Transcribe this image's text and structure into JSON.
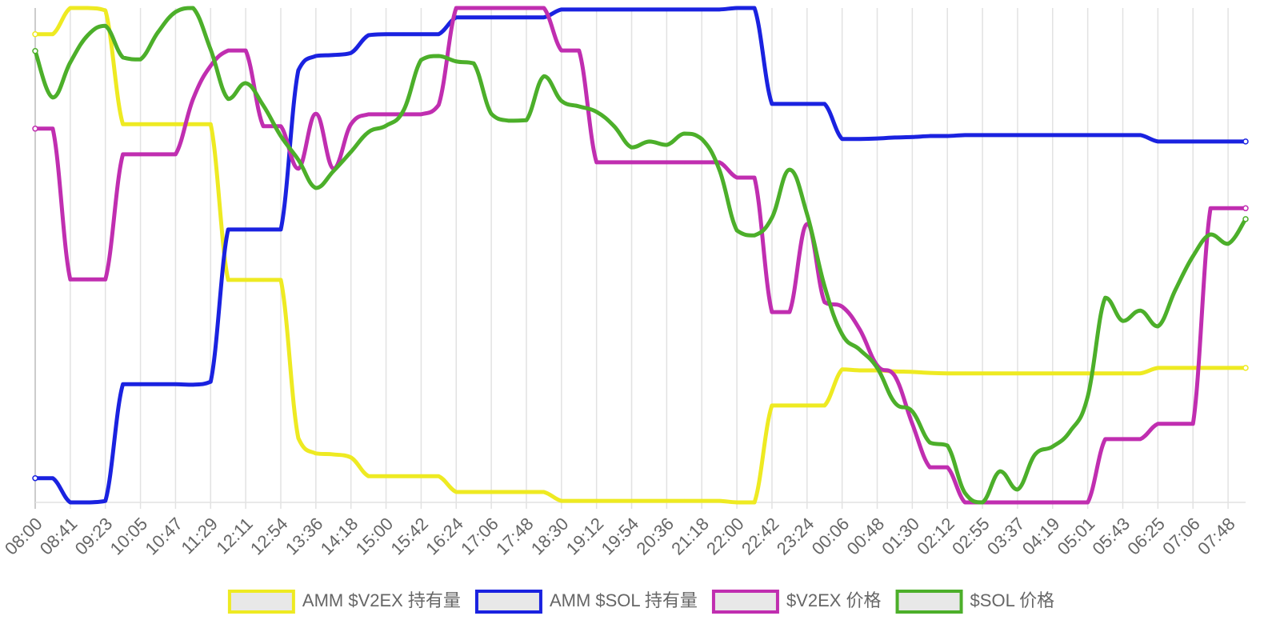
{
  "chart_data": {
    "type": "line",
    "categories": [
      "08:00",
      null,
      "08:41",
      null,
      "09:23",
      null,
      "10:05",
      null,
      "10:47",
      null,
      "11:29",
      null,
      "12:11",
      null,
      "12:54",
      null,
      "13:36",
      null,
      "14:18",
      null,
      "15:00",
      null,
      "15:42",
      null,
      "16:24",
      null,
      "17:06",
      null,
      "17:48",
      null,
      "18:30",
      null,
      "19:12",
      null,
      "19:54",
      null,
      "20:36",
      null,
      "21:18",
      null,
      "22:00",
      null,
      "22:42",
      null,
      "23:24",
      null,
      "00:06",
      null,
      "00:48",
      null,
      "01:30",
      null,
      "02:12",
      null,
      "02:55",
      null,
      "03:37",
      null,
      "04:19",
      null,
      "05:01",
      null,
      "05:43",
      null,
      "06:25",
      null,
      "07:06",
      null,
      "07:48",
      null
    ],
    "ylim": [
      0,
      100
    ],
    "legend": "bottom",
    "series": [
      {
        "name": "AMM $V2EX 持有量",
        "color": "#eeea22",
        "values": [
          94.7,
          94.7,
          100,
          100,
          99.5,
          76.5,
          76.5,
          76.5,
          76.5,
          76.5,
          76.5,
          45.0,
          45.0,
          45.0,
          45.0,
          13.0,
          9.9,
          9.7,
          9.1,
          5.3,
          5.3,
          5.3,
          5.3,
          5.3,
          2.1,
          2.1,
          2.1,
          2.1,
          2.1,
          2.1,
          0.3,
          0.3,
          0.3,
          0.3,
          0.3,
          0.3,
          0.3,
          0.3,
          0.3,
          0.3,
          0,
          0,
          19.6,
          19.6,
          19.6,
          19.6,
          26.9,
          26.7,
          26.7,
          26.5,
          26.4,
          26.2,
          26.1,
          26.1,
          26.1,
          26.1,
          26.1,
          26.1,
          26.1,
          26.1,
          26.1,
          26.1,
          26.1,
          26.1,
          27.2,
          27.2,
          27.2,
          27.2,
          27.2,
          27.2
        ]
      },
      {
        "name": "AMM $SOL 持有量",
        "color": "#1a22e0",
        "values": [
          4.9,
          4.9,
          0,
          0,
          0.3,
          23.9,
          23.9,
          23.9,
          23.9,
          23.8,
          24.4,
          55.2,
          55.2,
          55.2,
          55.2,
          87.4,
          90.3,
          90.5,
          90.9,
          94.5,
          94.7,
          94.7,
          94.7,
          94.7,
          98.1,
          98.1,
          98.1,
          98.1,
          98.1,
          98.1,
          99.7,
          99.7,
          99.7,
          99.7,
          99.7,
          99.7,
          99.7,
          99.7,
          99.7,
          99.7,
          100,
          100,
          80.6,
          80.6,
          80.6,
          80.6,
          73.5,
          73.5,
          73.6,
          73.8,
          73.9,
          74.1,
          74.1,
          74.3,
          74.3,
          74.3,
          74.3,
          74.3,
          74.3,
          74.3,
          74.3,
          74.3,
          74.3,
          74.3,
          73.0,
          73.0,
          73.0,
          73.0,
          73.0,
          73.0
        ]
      },
      {
        "name": "$V2EX 价格",
        "color": "#c02eb0",
        "values": [
          75.6,
          75.6,
          45.1,
          45.1,
          45.1,
          70.4,
          70.4,
          70.4,
          70.4,
          81.6,
          88.3,
          91.4,
          91.4,
          76.1,
          76.1,
          67.5,
          78.6,
          67.5,
          76.5,
          78.5,
          78.5,
          78.5,
          78.5,
          80.4,
          100,
          100,
          100,
          100,
          100,
          100,
          91.4,
          91.4,
          68.8,
          68.8,
          68.8,
          68.8,
          68.8,
          68.8,
          68.8,
          68.8,
          65.7,
          65.7,
          38.5,
          38.5,
          56.3,
          40.5,
          39.6,
          35.0,
          27.7,
          25.6,
          15.9,
          7.1,
          7.1,
          0,
          0,
          0,
          0,
          0,
          0,
          0,
          0,
          12.8,
          12.8,
          12.8,
          15.9,
          15.9,
          15.9,
          59.5,
          59.5,
          59.5
        ]
      },
      {
        "name": "$SOL 价格",
        "color": "#4caf2a",
        "values": [
          91.3,
          81.9,
          89.0,
          94.5,
          96.4,
          90.0,
          89.6,
          95.1,
          99.2,
          100,
          91.6,
          81.6,
          84.8,
          80.3,
          74.1,
          69.3,
          63.6,
          67.0,
          70.9,
          74.9,
          76.2,
          79.3,
          89.5,
          90.3,
          89.2,
          88.8,
          78.6,
          77.2,
          77.3,
          86.2,
          81.2,
          80.1,
          79.0,
          76.1,
          71.8,
          73.0,
          72.3,
          74.6,
          73.5,
          67.3,
          55.0,
          54.0,
          57.6,
          67.3,
          58.3,
          43.7,
          34.0,
          30.9,
          27.2,
          20.2,
          18.4,
          12.1,
          11.5,
          1.9,
          0,
          6.3,
          2.6,
          9.7,
          11.3,
          14.4,
          21.4,
          41.4,
          36.7,
          38.8,
          35.6,
          43.0,
          49.8,
          54.2,
          52.3,
          57.3
        ]
      }
    ]
  }
}
